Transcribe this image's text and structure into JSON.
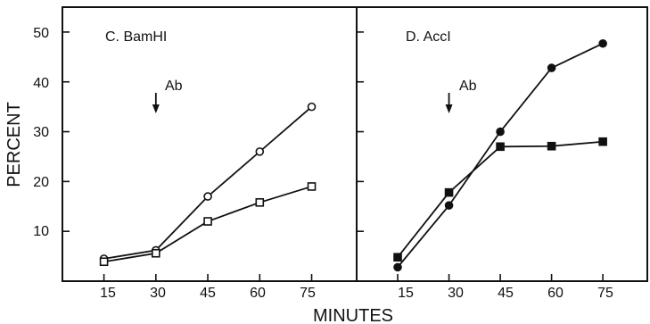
{
  "figure": {
    "xlabel": "MINUTES",
    "ylabel": "PERCENT"
  },
  "chart_data": [
    {
      "type": "line",
      "title": "C. BamHI",
      "annotation": {
        "label": "Ab",
        "x": 30
      },
      "x": [
        15,
        30,
        45,
        60,
        75
      ],
      "xlim": [
        3,
        88
      ],
      "ylim": [
        0,
        55
      ],
      "yticks": [
        10,
        20,
        30,
        40,
        50
      ],
      "series": [
        {
          "marker": "open-circle",
          "values": [
            4.5,
            6.2,
            17,
            26,
            35
          ]
        },
        {
          "marker": "open-square",
          "values": [
            3.9,
            5.6,
            12,
            15.8,
            19
          ]
        }
      ]
    },
    {
      "type": "line",
      "title": "D. AccI",
      "annotation": {
        "label": "Ab",
        "x": 30
      },
      "x": [
        15,
        30,
        45,
        60,
        75
      ],
      "xlim": [
        3,
        88
      ],
      "ylim": [
        0,
        55
      ],
      "yticks": [
        10,
        20,
        30,
        40,
        50
      ],
      "series": [
        {
          "marker": "filled-circle",
          "values": [
            2.8,
            15.2,
            30,
            42.8,
            47.7
          ]
        },
        {
          "marker": "filled-square",
          "values": [
            4.8,
            17.8,
            27,
            27.1,
            28
          ]
        }
      ]
    }
  ]
}
